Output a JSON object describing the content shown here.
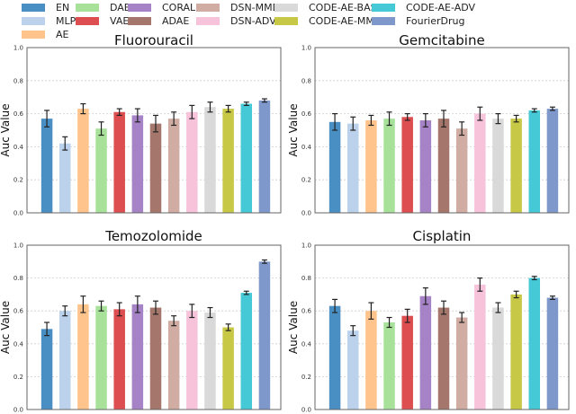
{
  "legend": [
    {
      "name": "EN",
      "color": "#4a8fc3"
    },
    {
      "name": "MLP",
      "color": "#bcd2ec"
    },
    {
      "name": "AE",
      "color": "#ffc48c"
    },
    {
      "name": "DAE",
      "color": "#a8e29a"
    },
    {
      "name": "VAE",
      "color": "#dd4e50"
    },
    {
      "name": "CORAL",
      "color": "#a682c6"
    },
    {
      "name": "ADAE",
      "color": "#a5776c"
    },
    {
      "name": "DSN-MMD",
      "color": "#d1aca3"
    },
    {
      "name": "DSN-ADV",
      "color": "#f6c3da"
    },
    {
      "name": "CODE-AE-BASE",
      "color": "#d9d9d9"
    },
    {
      "name": "CODE-AE-MMD",
      "color": "#c8c847"
    },
    {
      "name": "CODE-AE-ADV",
      "color": "#45c9d7"
    },
    {
      "name": "FourierDrug",
      "color": "#7f98cc"
    }
  ],
  "chart_data": [
    {
      "type": "bar",
      "title": "Fluorouracil",
      "xlabel": "",
      "ylabel": "Auc Value",
      "ylim": [
        0,
        1
      ],
      "yticks": [
        "0.0",
        "0.2",
        "0.4",
        "0.6",
        "0.8",
        "1.0"
      ],
      "grid": true,
      "categories": [
        "EN",
        "MLP",
        "AE",
        "DAE",
        "VAE",
        "CORAL",
        "ADAE",
        "DSN-MMD",
        "DSN-ADV",
        "CODE-AE-BASE",
        "CODE-AE-MMD",
        "CODE-AE-ADV",
        "FourierDrug"
      ],
      "values": [
        0.57,
        0.42,
        0.63,
        0.51,
        0.61,
        0.59,
        0.54,
        0.57,
        0.61,
        0.64,
        0.63,
        0.66,
        0.68
      ],
      "errors": [
        0.05,
        0.04,
        0.03,
        0.04,
        0.02,
        0.04,
        0.05,
        0.04,
        0.04,
        0.03,
        0.02,
        0.01,
        0.01
      ]
    },
    {
      "type": "bar",
      "title": "Gemcitabine",
      "xlabel": "",
      "ylabel": "Auc Value",
      "ylim": [
        0,
        1
      ],
      "yticks": [
        "0.0",
        "0.2",
        "0.4",
        "0.6",
        "0.8",
        "1.0"
      ],
      "grid": true,
      "categories": [
        "EN",
        "MLP",
        "AE",
        "DAE",
        "VAE",
        "CORAL",
        "ADAE",
        "DSN-MMD",
        "DSN-ADV",
        "CODE-AE-BASE",
        "CODE-AE-MMD",
        "CODE-AE-ADV",
        "FourierDrug"
      ],
      "values": [
        0.55,
        0.54,
        0.56,
        0.57,
        0.58,
        0.56,
        0.57,
        0.51,
        0.6,
        0.57,
        0.57,
        0.62,
        0.63
      ],
      "errors": [
        0.05,
        0.04,
        0.03,
        0.04,
        0.02,
        0.04,
        0.05,
        0.04,
        0.04,
        0.03,
        0.02,
        0.01,
        0.01
      ]
    },
    {
      "type": "bar",
      "title": "Temozolomide",
      "xlabel": "",
      "ylabel": "Auc Value",
      "ylim": [
        0,
        1
      ],
      "yticks": [
        "0.0",
        "0.2",
        "0.4",
        "0.6",
        "0.8",
        "1.0"
      ],
      "grid": true,
      "categories": [
        "EN",
        "MLP",
        "AE",
        "DAE",
        "VAE",
        "CORAL",
        "ADAE",
        "DSN-MMD",
        "DSN-ADV",
        "CODE-AE-BASE",
        "CODE-AE-MMD",
        "CODE-AE-ADV",
        "FourierDrug"
      ],
      "values": [
        0.49,
        0.6,
        0.64,
        0.63,
        0.61,
        0.64,
        0.62,
        0.54,
        0.6,
        0.59,
        0.5,
        0.71,
        0.9
      ],
      "errors": [
        0.04,
        0.03,
        0.05,
        0.03,
        0.04,
        0.05,
        0.04,
        0.03,
        0.04,
        0.03,
        0.02,
        0.01,
        0.01
      ]
    },
    {
      "type": "bar",
      "title": "Cisplatin",
      "xlabel": "",
      "ylabel": "Auc Value",
      "ylim": [
        0,
        1
      ],
      "yticks": [
        "0.0",
        "0.2",
        "0.4",
        "0.6",
        "0.8",
        "1.0"
      ],
      "grid": true,
      "categories": [
        "EN",
        "MLP",
        "AE",
        "DAE",
        "VAE",
        "CORAL",
        "ADAE",
        "DSN-MMD",
        "DSN-ADV",
        "CODE-AE-BASE",
        "CODE-AE-MMD",
        "CODE-AE-ADV",
        "FourierDrug"
      ],
      "values": [
        0.63,
        0.48,
        0.6,
        0.53,
        0.57,
        0.69,
        0.62,
        0.56,
        0.76,
        0.62,
        0.7,
        0.8,
        0.68
      ],
      "errors": [
        0.04,
        0.03,
        0.05,
        0.03,
        0.04,
        0.05,
        0.04,
        0.03,
        0.04,
        0.03,
        0.02,
        0.01,
        0.01
      ]
    }
  ]
}
